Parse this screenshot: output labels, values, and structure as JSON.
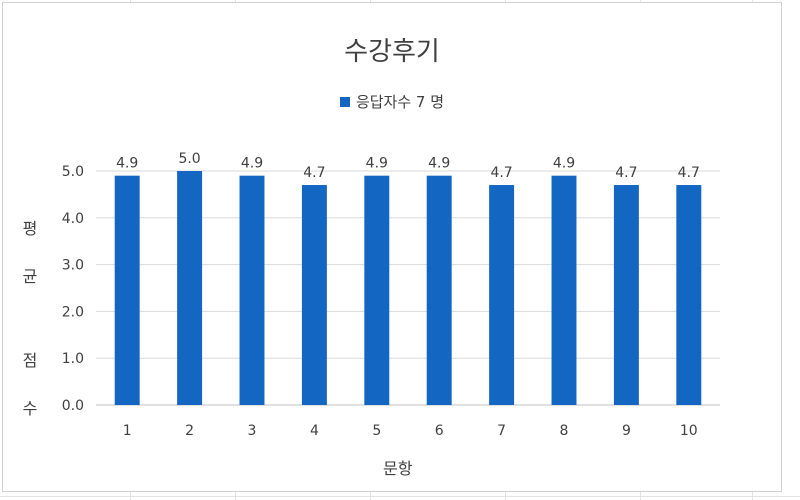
{
  "chart_data": {
    "type": "bar",
    "title": "수강후기",
    "xlabel": "문항",
    "ylabel": [
      "평",
      "균",
      "점",
      "수"
    ],
    "categories": [
      "1",
      "2",
      "3",
      "4",
      "5",
      "6",
      "7",
      "8",
      "9",
      "10"
    ],
    "series": [
      {
        "name": "응답자수 7 명",
        "values": [
          4.9,
          5.0,
          4.9,
          4.7,
          4.9,
          4.9,
          4.7,
          4.9,
          4.7,
          4.7
        ],
        "labels": [
          "4.9",
          "5.0",
          "4.9",
          "4.7",
          "4.9",
          "4.9",
          "4.7",
          "4.9",
          "4.7",
          "4.7"
        ]
      }
    ],
    "ylim": [
      0,
      5
    ],
    "yticks": [
      "0.0",
      "1.0",
      "2.0",
      "3.0",
      "4.0",
      "5.0"
    ],
    "grid": true,
    "legend": "top-center",
    "colors": {
      "bar": "#1367c2",
      "grid": "#d9d9d9",
      "text": "#404040"
    }
  }
}
